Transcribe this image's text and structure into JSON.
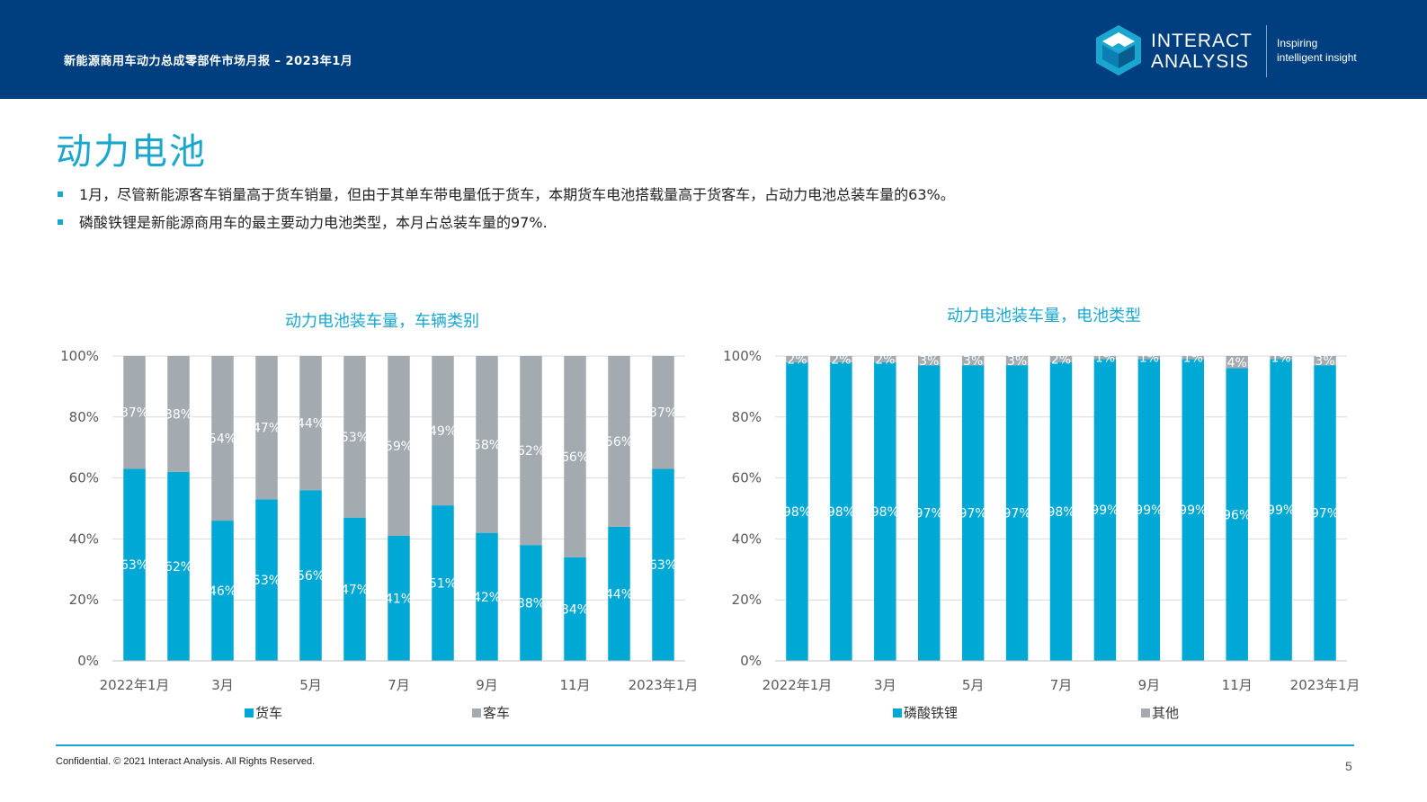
{
  "header": {
    "title": "新能源商用车动力总成零部件市场月报 – 2023年1月",
    "logo_line1": "INTERACT",
    "logo_line2": "ANALYSIS",
    "tagline_line1": "Inspiring",
    "tagline_line2": "intelligent insight",
    "background_color": "#003f7f"
  },
  "page_title": "动力电池",
  "bullets": [
    "1月，尽管新能源客车销量高于货车销量，但由于其单车带电量低于货车，本期货车电池搭载量高于货客车，占动力电池总装车量的63%。",
    "磷酸铁锂是新能源商用车的最主要动力电池类型，本月占总装车量的97%."
  ],
  "chart_data": [
    {
      "type": "bar",
      "stacked": "percent",
      "title": "动力电池装车量，车辆类别",
      "categories": [
        "2022年1月",
        "2022年2月",
        "2022年3月",
        "2022年4月",
        "2022年5月",
        "2022年6月",
        "2022年7月",
        "2022年8月",
        "2022年9月",
        "2022年10月",
        "2022年11月",
        "2022年12月",
        "2023年1月"
      ],
      "x_tick_labels": [
        "2022年1月",
        "",
        "3月",
        "",
        "5月",
        "",
        "7月",
        "",
        "9月",
        "",
        "11月",
        "",
        "2023年1月"
      ],
      "series": [
        {
          "name": "货车",
          "color": "#00a8d6",
          "values": [
            63,
            62,
            46,
            53,
            56,
            47,
            41,
            51,
            42,
            38,
            34,
            44,
            63
          ]
        },
        {
          "name": "客车",
          "color": "#a3abb1",
          "values": [
            37,
            38,
            54,
            47,
            44,
            53,
            59,
            49,
            58,
            62,
            66,
            56,
            37
          ]
        }
      ],
      "y_ticks": [
        "0%",
        "20%",
        "40%",
        "60%",
        "80%",
        "100%"
      ],
      "ylim": [
        0,
        100
      ],
      "legend_position": "bottom",
      "grid": true
    },
    {
      "type": "bar",
      "stacked": "percent",
      "title": "动力电池装车量，电池类型",
      "categories": [
        "2022年1月",
        "2022年2月",
        "2022年3月",
        "2022年4月",
        "2022年5月",
        "2022年6月",
        "2022年7月",
        "2022年8月",
        "2022年9月",
        "2022年10月",
        "2022年11月",
        "2022年12月",
        "2023年1月"
      ],
      "x_tick_labels": [
        "2022年1月",
        "",
        "3月",
        "",
        "5月",
        "",
        "7月",
        "",
        "9月",
        "",
        "11月",
        "",
        "2023年1月"
      ],
      "series": [
        {
          "name": "磷酸铁锂",
          "color": "#00a8d6",
          "values": [
            98,
            98,
            98,
            97,
            97,
            97,
            98,
            99,
            99,
            99,
            96,
            99,
            97
          ]
        },
        {
          "name": "其他",
          "color": "#a3abb1",
          "values": [
            2,
            2,
            2,
            3,
            3,
            3,
            2,
            1,
            1,
            1,
            4,
            1,
            3
          ]
        }
      ],
      "y_ticks": [
        "0%",
        "20%",
        "40%",
        "60%",
        "80%",
        "100%"
      ],
      "ylim": [
        0,
        100
      ],
      "legend_position": "bottom",
      "grid": true
    }
  ],
  "footer": {
    "confidential": "Confidential. © 2021 Interact Analysis. All Rights Reserved.",
    "page_number": "5"
  }
}
